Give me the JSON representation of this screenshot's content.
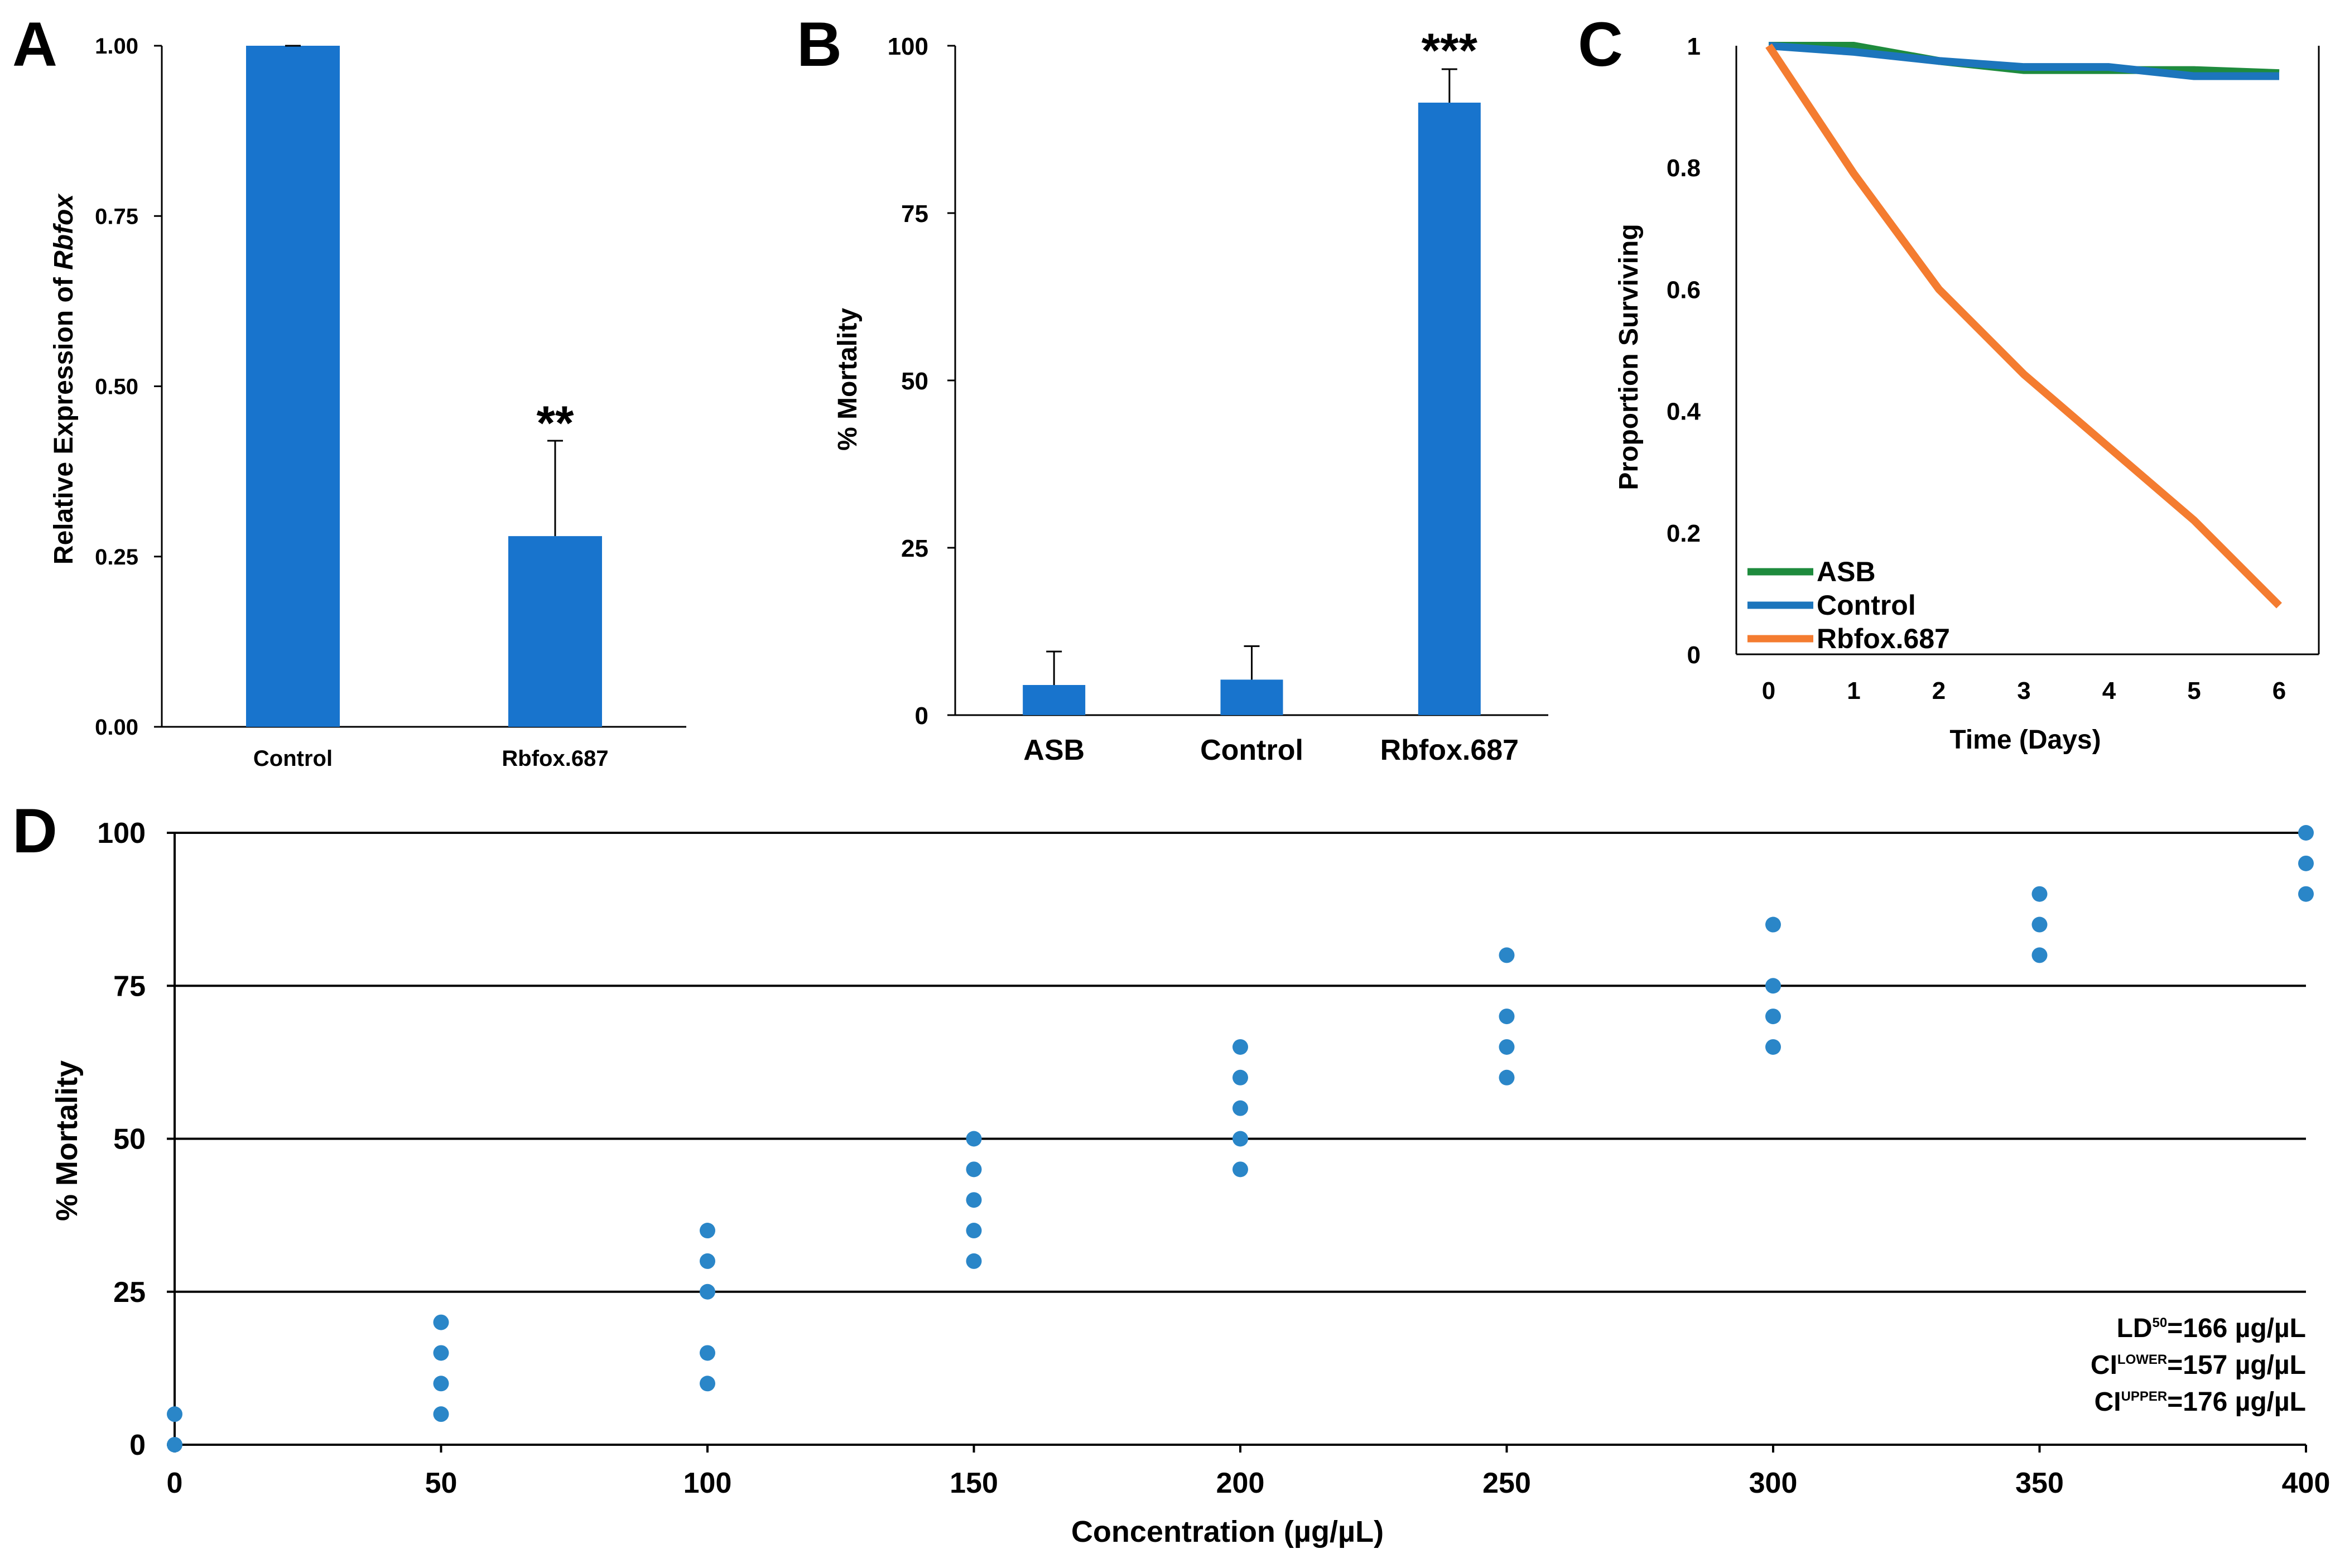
{
  "chart_data": [
    {
      "panel": "A",
      "type": "bar",
      "categories": [
        "Control",
        "Rbfox.687"
      ],
      "values": [
        1.0,
        0.28
      ],
      "errors": [
        0.0,
        0.14
      ],
      "significance": [
        "",
        "**"
      ],
      "ylabel_prefix": "Relative Expression of ",
      "ylabel_gene": "Rbfox",
      "ylim": [
        0,
        1.0
      ],
      "yticks": [
        "0.00",
        "0.25",
        "0.50",
        "0.75",
        "1.00"
      ],
      "ytick_values": [
        0,
        0.25,
        0.5,
        0.75,
        1.0
      ],
      "color": "#1874CD"
    },
    {
      "panel": "B",
      "type": "bar",
      "categories": [
        "ASB",
        "Control",
        "Rbfox.687"
      ],
      "values": [
        4.5,
        5.3,
        91.5
      ],
      "errors": [
        5.0,
        5.0,
        5.0
      ],
      "significance": [
        "",
        "",
        "***"
      ],
      "ylabel": "% Mortality",
      "ylim": [
        0,
        100
      ],
      "yticks": [
        "0",
        "25",
        "50",
        "75",
        "100"
      ],
      "ytick_values": [
        0,
        25,
        50,
        75,
        100
      ],
      "color": "#1874CD"
    },
    {
      "panel": "C",
      "type": "line",
      "x": [
        0,
        1,
        2,
        3,
        4,
        5,
        6
      ],
      "xticks": [
        "0",
        "1",
        "2",
        "3",
        "4",
        "5",
        "6"
      ],
      "series": [
        {
          "name": "ASB",
          "values": [
            1.0,
            1.0,
            0.975,
            0.96,
            0.96,
            0.96,
            0.955
          ],
          "color": "#1E8B3D"
        },
        {
          "name": "Control",
          "values": [
            1.0,
            0.99,
            0.975,
            0.965,
            0.965,
            0.95,
            0.95
          ],
          "color": "#1C75BC"
        },
        {
          "name": "Rbfox.687",
          "values": [
            1.0,
            0.79,
            0.6,
            0.46,
            0.34,
            0.22,
            0.08
          ],
          "color": "#F47C30"
        }
      ],
      "xlabel": "Time (Days)",
      "ylabel": "Proportion Surviving",
      "ylim": [
        0,
        1
      ],
      "yticks": [
        "0",
        "0.2",
        "0.4",
        "0.6",
        "0.8",
        "1"
      ],
      "ytick_values": [
        0,
        0.2,
        0.4,
        0.6,
        0.8,
        1.0
      ],
      "legend_position": "bottom-left"
    },
    {
      "panel": "D",
      "type": "scatter",
      "points": [
        {
          "x": 0,
          "y": 0
        },
        {
          "x": 0,
          "y": 5
        },
        {
          "x": 50,
          "y": 5
        },
        {
          "x": 50,
          "y": 10
        },
        {
          "x": 50,
          "y": 15
        },
        {
          "x": 50,
          "y": 20
        },
        {
          "x": 100,
          "y": 10
        },
        {
          "x": 100,
          "y": 15
        },
        {
          "x": 100,
          "y": 25
        },
        {
          "x": 100,
          "y": 30
        },
        {
          "x": 100,
          "y": 35
        },
        {
          "x": 150,
          "y": 30
        },
        {
          "x": 150,
          "y": 35
        },
        {
          "x": 150,
          "y": 40
        },
        {
          "x": 150,
          "y": 45
        },
        {
          "x": 150,
          "y": 50
        },
        {
          "x": 200,
          "y": 45
        },
        {
          "x": 200,
          "y": 50
        },
        {
          "x": 200,
          "y": 55
        },
        {
          "x": 200,
          "y": 60
        },
        {
          "x": 200,
          "y": 65
        },
        {
          "x": 250,
          "y": 60
        },
        {
          "x": 250,
          "y": 65
        },
        {
          "x": 250,
          "y": 70
        },
        {
          "x": 250,
          "y": 80
        },
        {
          "x": 300,
          "y": 65
        },
        {
          "x": 300,
          "y": 70
        },
        {
          "x": 300,
          "y": 75
        },
        {
          "x": 300,
          "y": 85
        },
        {
          "x": 350,
          "y": 80
        },
        {
          "x": 350,
          "y": 85
        },
        {
          "x": 350,
          "y": 90
        },
        {
          "x": 400,
          "y": 90
        },
        {
          "x": 400,
          "y": 95
        },
        {
          "x": 400,
          "y": 100
        }
      ],
      "xlabel": "Concentration (µg/µL)",
      "ylabel": "% Mortality",
      "xlim": [
        0,
        400
      ],
      "ylim": [
        0,
        100
      ],
      "xticks": [
        "0",
        "50",
        "100",
        "150",
        "200",
        "250",
        "300",
        "350",
        "400"
      ],
      "xtick_values": [
        0,
        50,
        100,
        150,
        200,
        250,
        300,
        350,
        400
      ],
      "yticks": [
        "0",
        "25",
        "50",
        "75",
        "100"
      ],
      "ytick_values": [
        0,
        25,
        50,
        75,
        100
      ],
      "gridlines": true,
      "color": "#2A86C8",
      "annotations": [
        {
          "main": "LD",
          "sup": "50",
          "value": "=166 µg/µL"
        },
        {
          "main": "CI",
          "sup": "LOWER",
          "value": "=157 µg/µL"
        },
        {
          "main": "CI",
          "sup": "UPPER",
          "value": "=176 µg/µL"
        }
      ]
    }
  ],
  "panel_labels": {
    "a": "A",
    "b": "B",
    "c": "C",
    "d": "D"
  }
}
